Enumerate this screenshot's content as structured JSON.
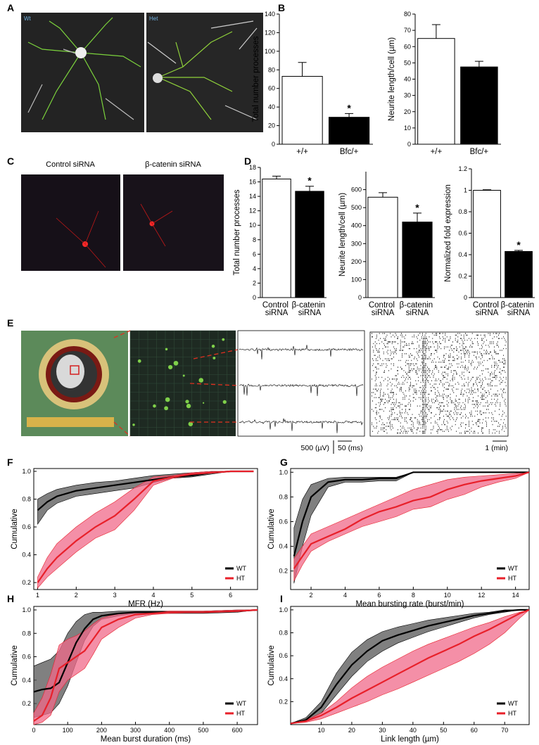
{
  "panel_labels": [
    "A",
    "B",
    "C",
    "D",
    "E",
    "F",
    "G",
    "H",
    "I"
  ],
  "image_labels": {
    "a_left": "Wt",
    "a_right": "Het",
    "c_left": "Control siRNA",
    "c_right": "β-catenin siRNA"
  },
  "scale_bars": [
    "500 (µV)",
    "50 (ms)",
    "1 (min)"
  ],
  "chart_data": [
    {
      "type": "bar",
      "ylabel": "Total number processes",
      "categories": [
        "+/+",
        "Bfc/+"
      ],
      "values": [
        73,
        29
      ],
      "errors": [
        15,
        4
      ],
      "significance": [
        null,
        "*"
      ],
      "colors": [
        "#ffffff",
        "#000000"
      ],
      "ylim": [
        0,
        140
      ],
      "yticks": [
        0,
        20,
        40,
        60,
        80,
        100,
        120,
        140
      ]
    },
    {
      "type": "bar",
      "ylabel": "Neurite length/cell (µm)",
      "categories": [
        "+/+",
        "Bfc/+"
      ],
      "values": [
        65,
        47.5
      ],
      "errors": [
        8.5,
        3.5
      ],
      "significance": [
        null,
        null
      ],
      "colors": [
        "#ffffff",
        "#000000"
      ],
      "ylim": [
        0,
        80
      ],
      "yticks": [
        0,
        10,
        20,
        30,
        40,
        50,
        60,
        70,
        80
      ]
    },
    {
      "type": "bar",
      "ylabel": "Total number processes",
      "categories": [
        "Control siRNA",
        "β-catenin siRNA"
      ],
      "values": [
        16.4,
        14.7
      ],
      "errors": [
        0.4,
        0.7
      ],
      "significance": [
        null,
        "*"
      ],
      "colors": [
        "#ffffff",
        "#000000"
      ],
      "ylim": [
        0,
        18
      ],
      "yticks": [
        0,
        2,
        4,
        6,
        8,
        10,
        12,
        14,
        16,
        18
      ]
    },
    {
      "type": "bar",
      "ylabel": "Neurite length/cell (µm)",
      "categories": [
        "Control siRNA",
        "β-catenin siRNA"
      ],
      "values": [
        558,
        420
      ],
      "errors": [
        25,
        50
      ],
      "significance": [
        null,
        "*"
      ],
      "colors": [
        "#ffffff",
        "#000000"
      ],
      "ylim": [
        0,
        700
      ],
      "yticks": [
        0,
        100,
        200,
        300,
        400,
        500,
        600
      ]
    },
    {
      "type": "bar",
      "ylabel": "Normalized fold expression",
      "categories": [
        "Control siRNA",
        "β-catenin siRNA"
      ],
      "values": [
        1,
        0.43
      ],
      "errors": [
        0.005,
        0.01
      ],
      "significance": [
        null,
        "*"
      ],
      "colors": [
        "#ffffff",
        "#000000"
      ],
      "ylim": [
        0,
        1.2
      ],
      "yticks": [
        0,
        0.2,
        0.4,
        0.6,
        0.8,
        1,
        1.2
      ]
    },
    {
      "type": "line",
      "xlabel": "MFR (Hz)",
      "ylabel": "Cumulative",
      "x": [
        1,
        1.25,
        1.5,
        2,
        2.5,
        3,
        3.5,
        4,
        4.5,
        5,
        5.5,
        6,
        6.6
      ],
      "series": [
        {
          "name": "WT",
          "color": "#000000",
          "band_color": "#555555",
          "values": [
            0.72,
            0.78,
            0.82,
            0.86,
            0.88,
            0.9,
            0.92,
            0.94,
            0.96,
            0.97,
            0.99,
            1,
            1
          ],
          "lower": [
            0.62,
            0.72,
            0.77,
            0.82,
            0.84,
            0.86,
            0.88,
            0.92,
            0.95,
            0.96,
            0.98,
            1,
            1
          ],
          "upper": [
            0.8,
            0.84,
            0.87,
            0.9,
            0.92,
            0.93,
            0.95,
            0.97,
            0.98,
            0.99,
            1,
            1,
            1
          ]
        },
        {
          "name": "HT",
          "color": "#e8202a",
          "band_color": "#f06a8a",
          "values": [
            0.2,
            0.3,
            0.38,
            0.5,
            0.6,
            0.68,
            0.8,
            0.93,
            0.96,
            0.98,
            0.99,
            1,
            1
          ],
          "lower": [
            0.16,
            0.24,
            0.3,
            0.42,
            0.52,
            0.58,
            0.72,
            0.9,
            0.95,
            0.97,
            0.99,
            1,
            1
          ],
          "upper": [
            0.24,
            0.38,
            0.48,
            0.6,
            0.7,
            0.78,
            0.88,
            0.96,
            0.97,
            0.99,
            1,
            1,
            1
          ]
        }
      ],
      "xlim": [
        0.9,
        6.7
      ],
      "xticks": [
        1,
        2,
        3,
        4,
        5,
        6
      ],
      "ylim": [
        0.15,
        1.02
      ],
      "yticks": [
        0.2,
        0.4,
        0.6,
        0.8,
        {
          "value": 1,
          "label": "1.0"
        }
      ],
      "legend": "lower right"
    },
    {
      "type": "line",
      "xlabel": "Mean bursting rate (burst/min)",
      "ylabel": "Cumulative",
      "x": [
        1,
        1.5,
        2,
        3,
        4,
        5,
        6,
        7,
        8,
        9,
        10,
        11,
        12,
        13,
        14,
        14.8
      ],
      "series": [
        {
          "name": "WT",
          "color": "#000000",
          "band_color": "#555555",
          "values": [
            0.32,
            0.6,
            0.8,
            0.92,
            0.94,
            0.94,
            0.95,
            0.95,
            1,
            1,
            1,
            1,
            1,
            1,
            1,
            1
          ],
          "lower": [
            0.1,
            0.4,
            0.65,
            0.88,
            0.92,
            0.92,
            0.93,
            0.93,
            1,
            1,
            1,
            1,
            1,
            1,
            1,
            1
          ],
          "upper": [
            0.55,
            0.78,
            0.9,
            0.95,
            0.96,
            0.96,
            0.96,
            0.96,
            1,
            1,
            1,
            1,
            1,
            1,
            1,
            1
          ]
        },
        {
          "name": "HT",
          "color": "#e8202a",
          "band_color": "#f06a8a",
          "values": [
            0.22,
            0.32,
            0.42,
            0.48,
            0.54,
            0.62,
            0.68,
            0.72,
            0.77,
            0.8,
            0.86,
            0.9,
            0.93,
            0.95,
            0.97,
            1
          ],
          "lower": [
            0.12,
            0.25,
            0.36,
            0.44,
            0.5,
            0.56,
            0.6,
            0.64,
            0.7,
            0.72,
            0.78,
            0.82,
            0.88,
            0.92,
            0.95,
            1
          ],
          "upper": [
            0.3,
            0.4,
            0.5,
            0.56,
            0.62,
            0.68,
            0.74,
            0.8,
            0.86,
            0.9,
            0.94,
            0.96,
            0.97,
            0.98,
            0.99,
            1
          ]
        }
      ],
      "xlim": [
        0.8,
        14.8
      ],
      "xticks": [
        2,
        4,
        6,
        8,
        10,
        12,
        14
      ],
      "ylim": [
        0.05,
        1.03
      ],
      "yticks": [
        0.2,
        0.4,
        0.6,
        0.8,
        {
          "value": 1,
          "label": "1.0"
        }
      ],
      "legend": "lower right"
    },
    {
      "type": "line",
      "xlabel": "Mean burst duration (ms)",
      "ylabel": "Cumulative",
      "x": [
        0,
        25,
        50,
        75,
        100,
        125,
        150,
        175,
        200,
        250,
        300,
        350,
        400,
        500,
        600,
        660
      ],
      "series": [
        {
          "name": "WT",
          "color": "#000000",
          "band_color": "#555555",
          "values": [
            0.3,
            0.32,
            0.33,
            0.38,
            0.55,
            0.72,
            0.84,
            0.92,
            0.95,
            0.97,
            0.98,
            0.98,
            0.98,
            0.98,
            0.99,
            1
          ],
          "lower": [
            0.08,
            0.1,
            0.12,
            0.2,
            0.35,
            0.55,
            0.74,
            0.86,
            0.92,
            0.95,
            0.97,
            0.97,
            0.97,
            0.97,
            0.98,
            1
          ],
          "upper": [
            0.52,
            0.55,
            0.58,
            0.65,
            0.8,
            0.9,
            0.96,
            0.98,
            0.98,
            0.99,
            0.99,
            0.99,
            0.99,
            0.99,
            1,
            1
          ]
        },
        {
          "name": "HT",
          "color": "#e8202a",
          "band_color": "#f06a8a",
          "values": [
            0.05,
            0.1,
            0.25,
            0.5,
            0.55,
            0.6,
            0.65,
            0.75,
            0.85,
            0.92,
            0.96,
            0.97,
            0.98,
            0.98,
            0.99,
            1
          ],
          "lower": [
            0.02,
            0.04,
            0.1,
            0.3,
            0.4,
            0.45,
            0.5,
            0.62,
            0.75,
            0.85,
            0.93,
            0.96,
            0.97,
            0.98,
            0.99,
            1
          ],
          "upper": [
            0.12,
            0.25,
            0.45,
            0.7,
            0.75,
            0.78,
            0.82,
            0.88,
            0.93,
            0.97,
            0.98,
            0.98,
            0.99,
            0.99,
            1,
            1
          ]
        }
      ],
      "xlim": [
        0,
        660
      ],
      "xticks": [
        0,
        100,
        200,
        300,
        400,
        500,
        600
      ],
      "ylim": [
        0.02,
        1.03
      ],
      "yticks": [
        0.2,
        0.4,
        0.6,
        0.8,
        {
          "value": 1,
          "label": "1.0"
        }
      ],
      "legend": "lower right"
    },
    {
      "type": "line",
      "xlabel": "Link length (µm)",
      "ylabel": "Cumulative",
      "x": [
        0,
        5,
        10,
        15,
        20,
        25,
        30,
        35,
        40,
        45,
        50,
        55,
        60,
        65,
        70,
        75,
        78
      ],
      "series": [
        {
          "name": "WT",
          "color": "#000000",
          "band_color": "#555555",
          "values": [
            0.01,
            0.04,
            0.15,
            0.35,
            0.52,
            0.64,
            0.73,
            0.78,
            0.82,
            0.86,
            0.89,
            0.92,
            0.95,
            0.97,
            0.99,
            1,
            1
          ],
          "lower": [
            0.01,
            0.03,
            0.1,
            0.26,
            0.42,
            0.55,
            0.64,
            0.71,
            0.76,
            0.81,
            0.85,
            0.89,
            0.93,
            0.96,
            0.98,
            1,
            1
          ],
          "upper": [
            0.01,
            0.06,
            0.2,
            0.45,
            0.63,
            0.74,
            0.81,
            0.85,
            0.88,
            0.91,
            0.93,
            0.95,
            0.97,
            0.98,
            1,
            1,
            1
          ]
        },
        {
          "name": "HT",
          "color": "#e8202a",
          "band_color": "#f06a8a",
          "values": [
            0.01,
            0.03,
            0.08,
            0.15,
            0.23,
            0.3,
            0.37,
            0.44,
            0.51,
            0.58,
            0.64,
            0.7,
            0.77,
            0.83,
            0.9,
            0.97,
            1
          ],
          "lower": [
            0.01,
            0.02,
            0.05,
            0.1,
            0.15,
            0.2,
            0.26,
            0.31,
            0.37,
            0.43,
            0.49,
            0.55,
            0.62,
            0.7,
            0.8,
            0.93,
            1
          ],
          "upper": [
            0.01,
            0.04,
            0.1,
            0.2,
            0.32,
            0.42,
            0.5,
            0.57,
            0.64,
            0.7,
            0.75,
            0.8,
            0.85,
            0.89,
            0.94,
            0.98,
            1
          ]
        }
      ],
      "xlim": [
        0,
        78
      ],
      "xticks": [
        10,
        20,
        30,
        40,
        50,
        60,
        70
      ],
      "ylim": [
        0,
        1.03
      ],
      "yticks": [
        0.2,
        0.4,
        0.6,
        0.8,
        {
          "value": 1,
          "label": "1.0"
        }
      ],
      "legend": "lower right"
    }
  ]
}
